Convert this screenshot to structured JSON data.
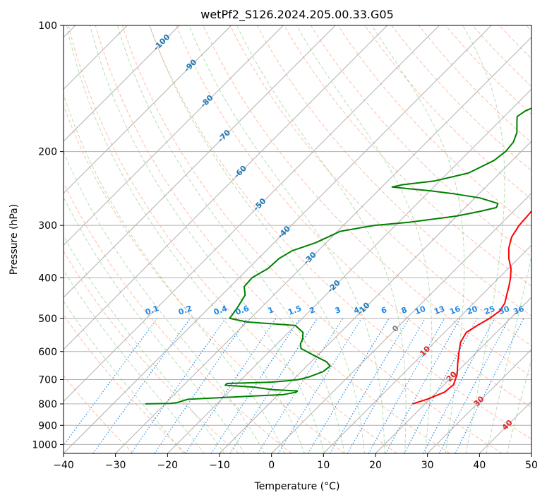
{
  "chart_data": {
    "type": "line",
    "title": "wetPf2_S126.2024.205.00.33.G05",
    "xlabel": "Temperature (°C)",
    "ylabel": "Pressure (hPa)",
    "xlim": [
      -40,
      50
    ],
    "ylim": [
      1050,
      100
    ],
    "y_scale": "log",
    "x_ticks": [
      -40,
      -30,
      -20,
      -10,
      0,
      10,
      20,
      30,
      40,
      50
    ],
    "x_tick_labels": [
      "−40",
      "−30",
      "−20",
      "−10",
      "0",
      "10",
      "20",
      "30",
      "40",
      "50"
    ],
    "y_ticks": [
      1000,
      900,
      800,
      700,
      600,
      500,
      400,
      300,
      200,
      100
    ],
    "y_tick_labels": [
      "1000",
      "900",
      "800",
      "700",
      "600",
      "500",
      "400",
      "300",
      "200",
      "100"
    ],
    "grid": true,
    "colors": {
      "temperature": "#ff0000",
      "dewpoint": "#008000",
      "dry_adiabat": "#ff7f50",
      "moist_adiabat": "#2ca02c",
      "mixing_ratio": "#1e88e5",
      "isotherm_label_neg": "#1f77b4",
      "isotherm_label_pos": "#d62728",
      "isotherm_label_zero": "#808080",
      "grid": "#b0b0b0"
    },
    "series": [
      {
        "key": "temperature",
        "color": "#ff0000",
        "points": [
          [
            800,
            17.6
          ],
          [
            780,
            19.5
          ],
          [
            750,
            21.5
          ],
          [
            720,
            21.8
          ],
          [
            680,
            20.5
          ],
          [
            640,
            18.5
          ],
          [
            600,
            16.5
          ],
          [
            570,
            15.0
          ],
          [
            540,
            14.2
          ],
          [
            520,
            15.0
          ],
          [
            500,
            16.0
          ],
          [
            480,
            16.5
          ],
          [
            460,
            16.0
          ],
          [
            440,
            14.8
          ],
          [
            420,
            13.6
          ],
          [
            400,
            12.2
          ],
          [
            380,
            10.5
          ],
          [
            360,
            8.2
          ],
          [
            340,
            6.2
          ],
          [
            320,
            4.6
          ],
          [
            300,
            3.8
          ],
          [
            280,
            3.5
          ],
          [
            260,
            3.0
          ],
          [
            240,
            2.8
          ],
          [
            220,
            2.5
          ],
          [
            200,
            2.4
          ],
          [
            180,
            3.5
          ],
          [
            160,
            4.8
          ],
          [
            150,
            5.6
          ],
          [
            140,
            6.0
          ],
          [
            130,
            6.5
          ],
          [
            120,
            8.0
          ],
          [
            115,
            9.5
          ],
          [
            110,
            11.0
          ],
          [
            105,
            12.5
          ],
          [
            100,
            13.0
          ]
        ]
      },
      {
        "key": "dewpoint",
        "color": "#008000",
        "points": [
          [
            800,
            -33.8
          ],
          [
            798,
            -29.0
          ],
          [
            795,
            -28.0
          ],
          [
            790,
            -27.5
          ],
          [
            785,
            -27.0
          ],
          [
            780,
            -26.5
          ],
          [
            770,
            -18.0
          ],
          [
            760,
            -9.0
          ],
          [
            750,
            -7.0
          ],
          [
            745,
            -7.0
          ],
          [
            740,
            -12.0
          ],
          [
            730,
            -16.0
          ],
          [
            722,
            -22.0
          ],
          [
            715,
            -22.0
          ],
          [
            710,
            -14.0
          ],
          [
            705,
            -11.0
          ],
          [
            700,
            -9.0
          ],
          [
            690,
            -7.5
          ],
          [
            670,
            -5.8
          ],
          [
            650,
            -5.5
          ],
          [
            635,
            -7.0
          ],
          [
            620,
            -9.5
          ],
          [
            605,
            -12.0
          ],
          [
            590,
            -14.5
          ],
          [
            575,
            -15.5
          ],
          [
            560,
            -16.0
          ],
          [
            540,
            -17.2
          ],
          [
            520,
            -20.0
          ],
          [
            510,
            -30.0
          ],
          [
            500,
            -34.0
          ],
          [
            470,
            -34.6
          ],
          [
            440,
            -35.5
          ],
          [
            420,
            -37.3
          ],
          [
            400,
            -37.5
          ],
          [
            380,
            -36.2
          ],
          [
            360,
            -36.0
          ],
          [
            345,
            -35.0
          ],
          [
            330,
            -32.0
          ],
          [
            318,
            -30.5
          ],
          [
            310,
            -29.5
          ],
          [
            300,
            -24.0
          ],
          [
            295,
            -18.0
          ],
          [
            285,
            -10.0
          ],
          [
            278,
            -6.5
          ],
          [
            272,
            -4.0
          ],
          [
            266,
            -4.5
          ],
          [
            258,
            -9.0
          ],
          [
            252,
            -15.0
          ],
          [
            248,
            -20.0
          ],
          [
            245,
            -25.0
          ],
          [
            243,
            -28.0
          ],
          [
            240,
            -26.5
          ],
          [
            235,
            -21.0
          ],
          [
            225,
            -16.0
          ],
          [
            210,
            -13.5
          ],
          [
            200,
            -13.0
          ],
          [
            190,
            -13.3
          ],
          [
            180,
            -14.5
          ],
          [
            170,
            -16.5
          ],
          [
            165,
            -17.5
          ],
          [
            160,
            -17.0
          ],
          [
            150,
            -14.0
          ],
          [
            140,
            -10.0
          ],
          [
            130,
            -8.0
          ],
          [
            120,
            -6.0
          ],
          [
            110,
            -6.5
          ],
          [
            100,
            -8.0
          ]
        ]
      }
    ],
    "isotherm_labels": [
      {
        "text": "-100",
        "x": -100,
        "p": 100
      },
      {
        "text": "-90",
        "x": -90,
        "p": 100
      },
      {
        "text": "-80",
        "x": -80,
        "p": 100
      },
      {
        "text": "-70",
        "x": -70,
        "p": 100
      },
      {
        "text": "-60",
        "x": -60,
        "p": 100
      },
      {
        "text": "-50",
        "x": -50,
        "p": 100
      },
      {
        "text": "-40",
        "x": -40,
        "p": 100
      },
      {
        "text": "-30",
        "x": -30,
        "p": 100
      },
      {
        "text": "-20",
        "x": -20,
        "p": 100
      },
      {
        "text": "-10",
        "x": -10,
        "p": 100
      },
      {
        "text": "0",
        "x": 0,
        "p": 100
      },
      {
        "text": "10",
        "x": 10,
        "p": 100
      },
      {
        "text": "20",
        "x": 20,
        "p": 100
      },
      {
        "text": "30",
        "x": 30,
        "p": 100
      },
      {
        "text": "40",
        "x": 40,
        "p": 100
      }
    ],
    "mixing_ratio_labels": [
      "0.1",
      "0.2",
      "0.4",
      "0.6",
      "1",
      "1.5",
      "2",
      "3",
      "4",
      "6",
      "8",
      "10",
      "13",
      "16",
      "20",
      "25",
      "30",
      "36"
    ],
    "mixing_ratio_values": [
      0.1,
      0.2,
      0.4,
      0.6,
      1,
      1.5,
      2,
      3,
      4,
      6,
      8,
      10,
      13,
      16,
      20,
      25,
      30,
      36
    ],
    "mixing_ratio_label_pressure": 500
  }
}
